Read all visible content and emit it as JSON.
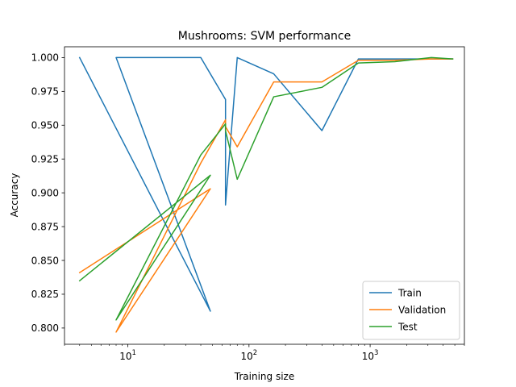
{
  "chart_data": {
    "type": "line",
    "title": "Mushrooms: SVM performance",
    "xlabel": "Training size",
    "ylabel": "Accuracy",
    "xscale": "log",
    "xlim": [
      3,
      6000
    ],
    "ylim": [
      0.788,
      1.008
    ],
    "yticks": [
      0.8,
      0.825,
      0.85,
      0.875,
      0.9,
      0.925,
      0.95,
      0.975,
      1.0
    ],
    "ytick_labels": [
      "0.800",
      "0.825",
      "0.850",
      "0.875",
      "0.900",
      "0.925",
      "0.950",
      "0.975",
      "1.000"
    ],
    "xticks": [
      10,
      100,
      1000
    ],
    "xtick_labels": [
      {
        "base": "10",
        "exp": "1"
      },
      {
        "base": "10",
        "exp": "2"
      },
      {
        "base": "10",
        "exp": "3"
      }
    ],
    "legend_position": "lower-right",
    "grid": false,
    "series": [
      {
        "name": "Train",
        "color": "#1f77b4",
        "x": [
          4,
          48,
          8,
          40,
          64,
          64,
          80,
          160,
          400,
          800,
          1600,
          3200,
          4800
        ],
        "y": [
          1.0,
          0.8125,
          1.0,
          1.0,
          0.969,
          0.891,
          1.0,
          0.988,
          0.946,
          0.999,
          0.999,
          0.999,
          0.999
        ]
      },
      {
        "name": "Validation",
        "color": "#ff7f0e",
        "x": [
          4,
          48,
          8,
          40,
          64,
          64,
          80,
          160,
          400,
          800,
          1600,
          3200,
          4800
        ],
        "y": [
          0.841,
          0.903,
          0.797,
          0.922,
          0.954,
          0.949,
          0.934,
          0.982,
          0.982,
          0.998,
          0.998,
          0.999,
          0.999
        ]
      },
      {
        "name": "Test",
        "color": "#2ca02c",
        "x": [
          4,
          48,
          8,
          40,
          64,
          64,
          80,
          160,
          400,
          800,
          1600,
          3200,
          4800
        ],
        "y": [
          0.835,
          0.913,
          0.806,
          0.928,
          0.951,
          0.946,
          0.91,
          0.971,
          0.978,
          0.996,
          0.997,
          1.0,
          0.999
        ]
      }
    ]
  }
}
